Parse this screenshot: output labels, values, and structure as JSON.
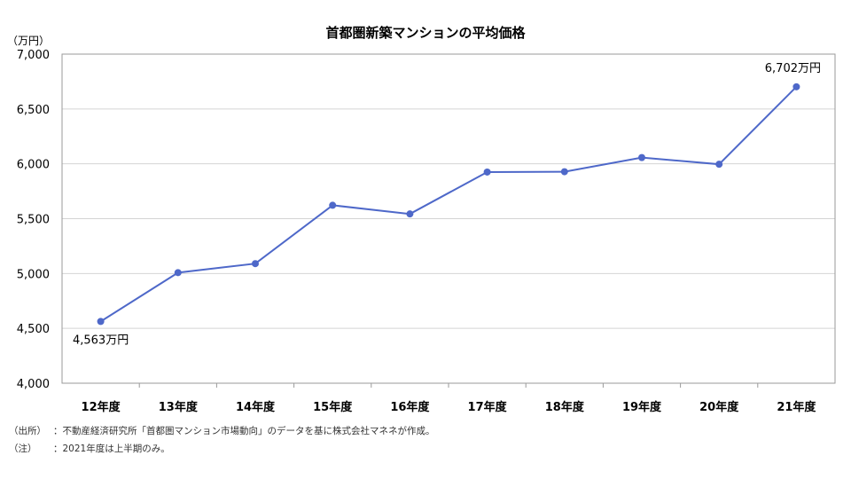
{
  "chart_data": {
    "type": "line",
    "title": "首都圏新築マンションの平均価格",
    "y_unit": "（万円）",
    "ylim": [
      4000,
      7000
    ],
    "yticks": [
      4000,
      4500,
      5000,
      5500,
      6000,
      6500,
      7000
    ],
    "ytick_labels": [
      "4,000",
      "4,500",
      "5,000",
      "5,500",
      "6,000",
      "6,500",
      "7,000"
    ],
    "categories": [
      "12年度",
      "13年度",
      "14年度",
      "15年度",
      "16年度",
      "17年度",
      "18年度",
      "19年度",
      "20年度",
      "21年度"
    ],
    "series": [
      {
        "values": [
          4563,
          5008,
          5090,
          5622,
          5543,
          5925,
          5928,
          6057,
          5996,
          6702
        ]
      }
    ],
    "data_labels": [
      {
        "index": 0,
        "text": "4,563万円"
      },
      {
        "index": 9,
        "text": "6,702万円"
      }
    ],
    "grid": true,
    "line_color": "#4e68c9"
  },
  "notes": {
    "source_key": "（出所）",
    "source_text": "：不動産経済研究所「首都圏マンション市場動向」のデータを基に株式会社マネネが作成。",
    "period_key": "（注）",
    "period_text": "：2021年度は上半期のみ。"
  }
}
